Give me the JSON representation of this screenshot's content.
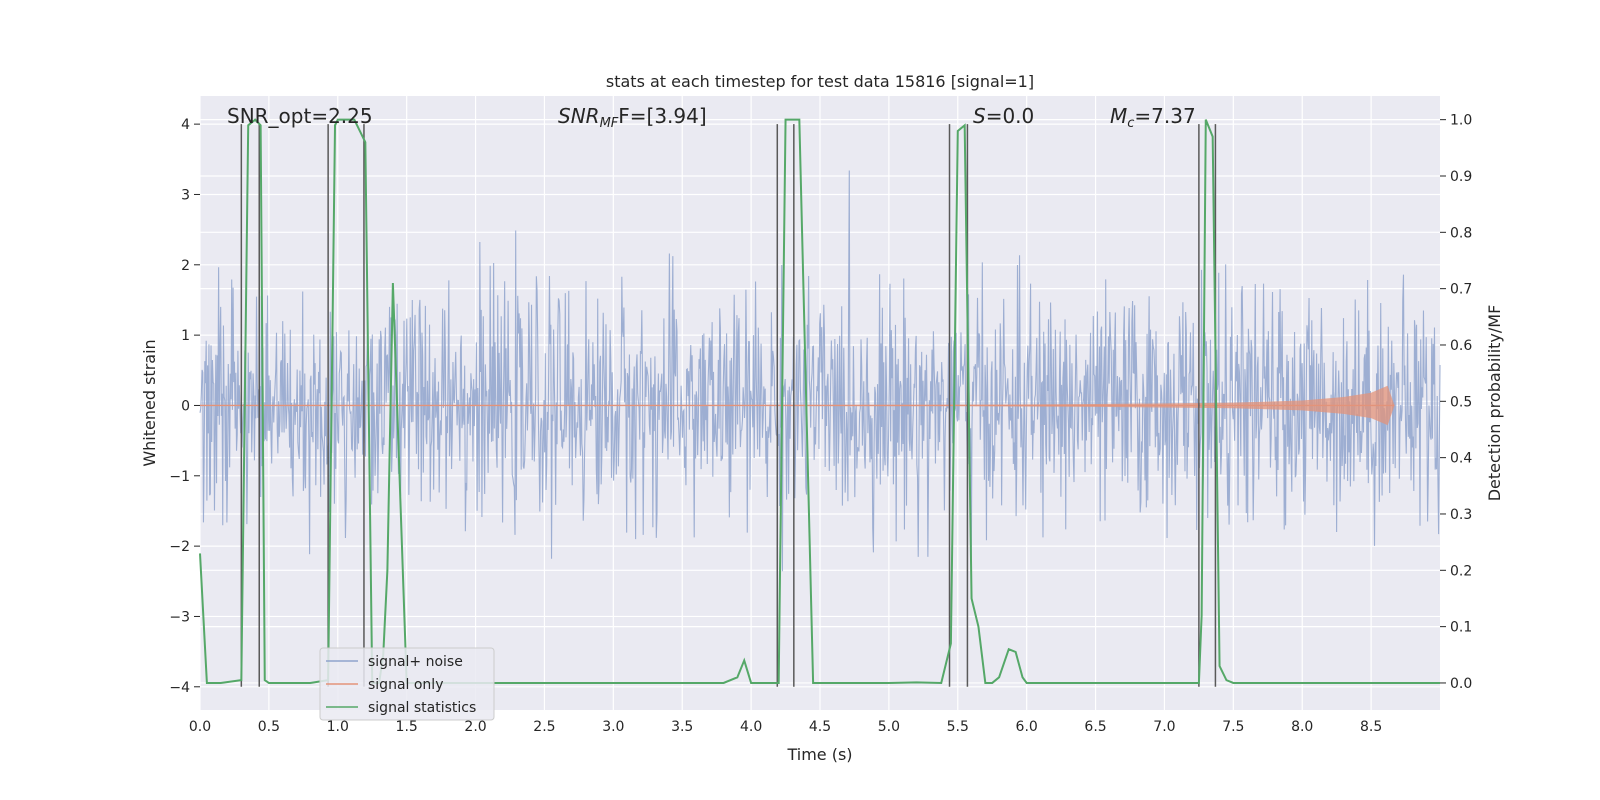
{
  "chart_data": {
    "type": "line",
    "title": "stats at each timestep for test data 15816 [signal=1]",
    "xlabel": "Time (s)",
    "ylabel_left": "Whitened strain",
    "ylabel_right": "Detection probability/MF",
    "xlim": [
      0.0,
      9.0
    ],
    "ylim_left": [
      -4.33,
      4.4
    ],
    "ylim_right": [
      -0.048,
      1.042
    ],
    "grid": true,
    "legend_position": "lower-left",
    "x_ticks": [
      "0.0",
      "0.5",
      "1.0",
      "1.5",
      "2.0",
      "2.5",
      "3.0",
      "3.5",
      "4.0",
      "4.5",
      "5.0",
      "5.5",
      "6.0",
      "6.5",
      "7.0",
      "7.5",
      "8.0",
      "8.5"
    ],
    "y_ticks_left": [
      "−4",
      "−3",
      "−2",
      "−1",
      "0",
      "1",
      "2",
      "3",
      "4"
    ],
    "y_ticks_right": [
      "0.0",
      "0.1",
      "0.2",
      "0.3",
      "0.4",
      "0.5",
      "0.6",
      "0.7",
      "0.8",
      "0.9",
      "1.0"
    ],
    "annotations": {
      "snr_opt": "SNR_opt=2.25",
      "snr_mf_main": "SNR",
      "snr_mf_sub": "MF",
      "snr_mf_value": "F=[3.94]",
      "s_main": "S",
      "s_value": "=0.0",
      "mc_main": "M",
      "mc_sub": "c",
      "mc_value": "=7.37"
    },
    "series": [
      {
        "name": "signal+ noise",
        "color": "#8fa3cc",
        "noise_sigma": 0.78,
        "n_points": 1800,
        "x_range": [
          0.0,
          9.0
        ]
      },
      {
        "name": "signal only",
        "color": "#e3937a",
        "envelope": {
          "x": [
            0.0,
            5.5,
            6.5,
            7.5,
            8.0,
            8.3,
            8.5,
            8.62,
            8.67
          ],
          "amplitude": [
            0.0,
            0.01,
            0.02,
            0.04,
            0.07,
            0.12,
            0.18,
            0.28,
            0.0
          ]
        }
      },
      {
        "name": "signal statistics",
        "color": "#55a868",
        "x": [
          0.0,
          0.05,
          0.15,
          0.3,
          0.35,
          0.4,
          0.44,
          0.47,
          0.5,
          0.55,
          0.6,
          0.8,
          0.93,
          0.98,
          1.0,
          1.1,
          1.12,
          1.2,
          1.25,
          1.3,
          1.33,
          1.36,
          1.4,
          1.5,
          1.6,
          2.0,
          3.0,
          3.8,
          3.9,
          3.95,
          4.0,
          4.2,
          4.25,
          4.3,
          4.35,
          4.45,
          4.5,
          4.6,
          5.0,
          5.2,
          5.38,
          5.45,
          5.5,
          5.55,
          5.6,
          5.65,
          5.7,
          5.75,
          5.8,
          5.87,
          5.92,
          5.97,
          6.0,
          6.1,
          7.0,
          7.25,
          7.27,
          7.3,
          7.35,
          7.4,
          7.45,
          7.5,
          7.6,
          8.0,
          9.0
        ],
        "y": [
          0.23,
          0.0,
          0.0,
          0.005,
          0.99,
          1.0,
          0.99,
          0.005,
          0.0,
          0.0,
          0.0,
          0.0,
          0.005,
          0.99,
          1.0,
          1.0,
          1.0,
          0.96,
          0.0,
          0.0,
          0.05,
          0.2,
          0.71,
          0.0,
          0.0,
          0.0,
          0.0,
          0.0,
          0.01,
          0.04,
          0.0,
          0.0,
          1.0,
          1.0,
          1.0,
          0.0,
          0.0,
          0.0,
          0.0,
          0.001,
          0.0,
          0.07,
          0.98,
          0.99,
          0.15,
          0.1,
          0.0,
          0.0,
          0.01,
          0.06,
          0.055,
          0.01,
          0.0,
          0.0,
          0.0,
          0.0,
          0.12,
          1.0,
          0.97,
          0.03,
          0.005,
          0.0,
          0.0,
          0.0,
          0.0
        ]
      }
    ],
    "markers": {
      "color": "#595959",
      "x": [
        0.3,
        0.43,
        0.93,
        1.19,
        4.19,
        4.31,
        5.44,
        5.57,
        7.25,
        7.37
      ]
    }
  }
}
